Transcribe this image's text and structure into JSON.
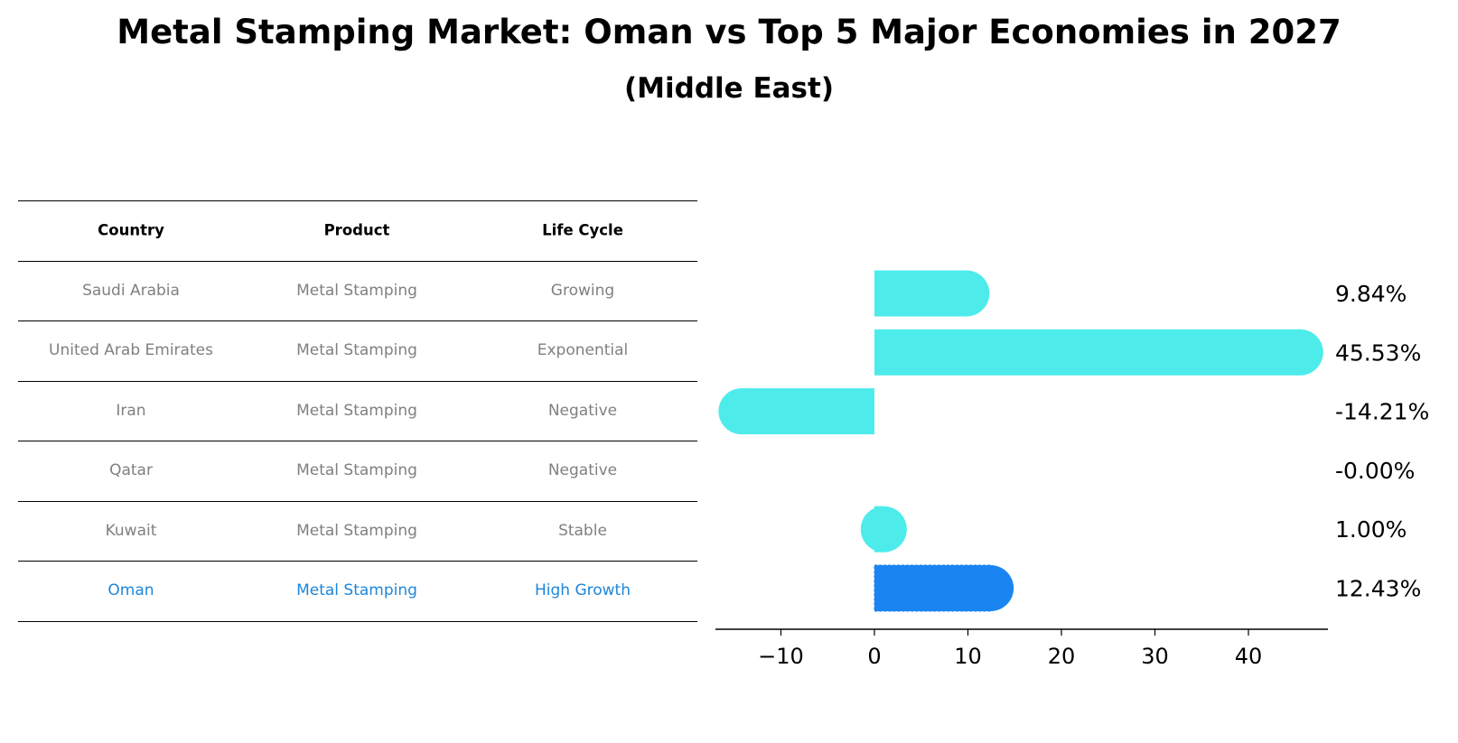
{
  "title": "Metal Stamping Market: Oman vs Top 5 Major Economies in 2027",
  "subtitle": "(Middle East)",
  "table": {
    "headers": [
      "Country",
      "Product",
      "Life Cycle"
    ],
    "rows": [
      [
        "Saudi Arabia",
        "Metal Stamping",
        "Growing"
      ],
      [
        "United Arab Emirates",
        "Metal Stamping",
        "Exponential"
      ],
      [
        "Iran",
        "Metal Stamping",
        "Negative"
      ],
      [
        "Qatar",
        "Metal Stamping",
        "Negative"
      ],
      [
        "Kuwait",
        "Metal Stamping",
        "Stable"
      ],
      [
        "Oman",
        "Metal Stamping",
        "High Growth"
      ]
    ],
    "highlight_row": 5
  },
  "colors": {
    "bar": "#4eebeb",
    "highlight": "#1a85f1",
    "text_muted": "#808080",
    "text_highlight": "#1f86d8"
  },
  "chart_data": {
    "type": "bar",
    "orientation": "horizontal",
    "categories": [
      "Saudi Arabia",
      "United Arab Emirates",
      "Iran",
      "Qatar",
      "Kuwait",
      "Oman"
    ],
    "values": [
      9.84,
      45.53,
      -14.21,
      -0.0,
      1.0,
      12.43
    ],
    "value_labels": [
      "9.84%",
      "45.53%",
      "-14.21%",
      "-0.00%",
      "1.00%",
      "12.43%"
    ],
    "highlight_index": 5,
    "xlim": [
      -17,
      48.5
    ],
    "xticks": [
      -10,
      0,
      10,
      20,
      30,
      40
    ],
    "xtick_labels": [
      "−10",
      "0",
      "10",
      "20",
      "30",
      "40"
    ],
    "grid": false
  }
}
